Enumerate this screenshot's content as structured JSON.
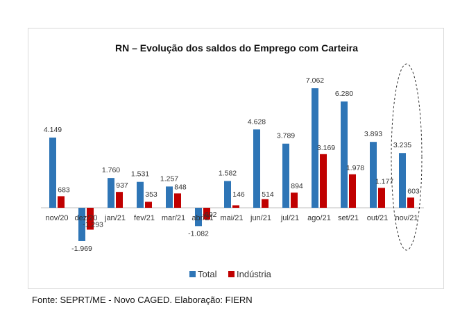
{
  "source": "Fonte: SEPRT/ME - Novo CAGED. Elaboração: FIERN",
  "chart_data": {
    "type": "bar",
    "title": "RN – Evolução dos saldos do Emprego com Carteira",
    "categories": [
      "nov/20",
      "dez/20",
      "jan/21",
      "fev/21",
      "mar/21",
      "abr/21",
      "mai/21",
      "jun/21",
      "jul/21",
      "ago/21",
      "set/21",
      "out/21",
      "nov/21"
    ],
    "series": [
      {
        "name": "Total",
        "color": "#2E75B6",
        "values": [
          4149,
          -1969,
          1760,
          1531,
          1257,
          -1082,
          1582,
          4628,
          3789,
          7062,
          6280,
          3893,
          3235
        ],
        "labels": [
          "4.149",
          "-1.969",
          "1.760",
          "1.531",
          "1.257",
          "-1.082",
          "1.582",
          "4.628",
          "3.789",
          "7.062",
          "6.280",
          "3.893",
          "3.235"
        ]
      },
      {
        "name": "Indústria",
        "color": "#C00000",
        "values": [
          683,
          -1293,
          937,
          353,
          848,
          -692,
          146,
          514,
          894,
          3169,
          1978,
          1177,
          603
        ],
        "labels": [
          "683",
          "-1.293",
          "937",
          "353",
          "848",
          "-692",
          "146",
          "514",
          "894",
          "3.169",
          "1.978",
          "1.177",
          "603"
        ]
      }
    ],
    "ylim": [
      -2200,
      7200
    ],
    "legend_position": "bottom",
    "highlight": {
      "category": "nov/21",
      "shape": "dashed-ellipse"
    },
    "grid": false
  }
}
